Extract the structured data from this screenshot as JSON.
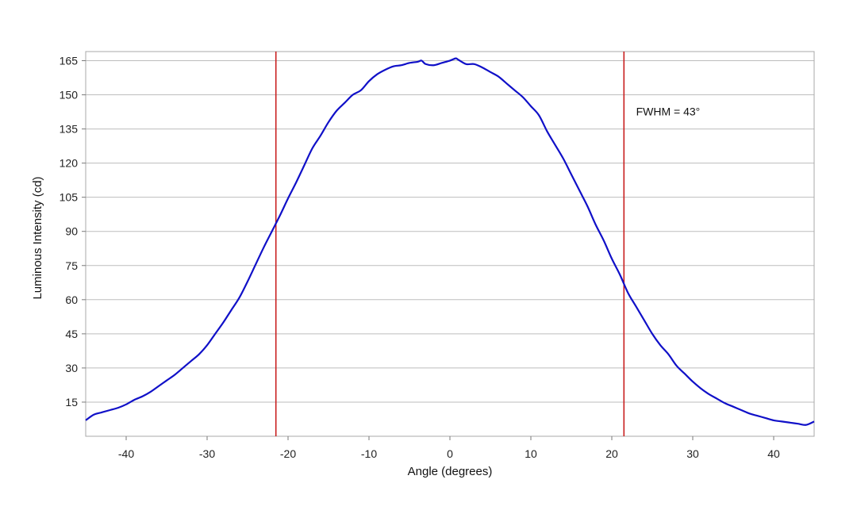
{
  "chart_data": {
    "type": "line",
    "title": "",
    "xlabel": "Angle (degrees)",
    "ylabel": "Luminous Intensity (cd)",
    "xlim": [
      -45,
      45
    ],
    "ylim": [
      0,
      169
    ],
    "x_ticks": [
      -40,
      -30,
      -20,
      -10,
      0,
      10,
      20,
      30,
      40
    ],
    "y_ticks": [
      15,
      30,
      45,
      60,
      75,
      90,
      105,
      120,
      135,
      150,
      165
    ],
    "grid": "horizontal",
    "legend": "none",
    "series": [
      {
        "color": "#1010c8",
        "x": [
          -45,
          -44,
          -43,
          -42,
          -41,
          -40,
          -39,
          -38,
          -37,
          -36,
          -35,
          -34,
          -33,
          -32,
          -31,
          -30,
          -29,
          -28,
          -27,
          -26,
          -25,
          -24,
          -23,
          -22,
          -21,
          -20,
          -19,
          -18,
          -17,
          -16,
          -15,
          -14,
          -13,
          -12,
          -11,
          -10,
          -9,
          -8,
          -7,
          -6,
          -5,
          -4,
          -3.5,
          -3,
          -2,
          -1,
          0,
          0.7,
          1,
          2,
          3,
          4,
          5,
          6,
          7,
          8,
          9,
          10,
          11,
          12,
          13,
          14,
          15,
          16,
          17,
          18,
          19,
          20,
          21,
          22,
          23,
          24,
          25,
          26,
          27,
          28,
          29,
          30,
          31,
          32,
          33,
          34,
          35,
          36,
          37,
          38,
          39,
          40,
          41,
          42,
          43,
          44,
          45
        ],
        "values": [
          7,
          9.5,
          10.5,
          11.5,
          12.5,
          14,
          16,
          17.5,
          19.5,
          22,
          24.5,
          27,
          30,
          33,
          36,
          40,
          45,
          50,
          55.5,
          61,
          68,
          75.5,
          83,
          90,
          97,
          104.5,
          111.5,
          119,
          126.5,
          132,
          138,
          143,
          146.5,
          150,
          152,
          156,
          159,
          161,
          162.5,
          163,
          164,
          164.5,
          165,
          163.5,
          163,
          164,
          165,
          166,
          165.5,
          163.5,
          163.5,
          162,
          160,
          158,
          155,
          152,
          149,
          145,
          141,
          134,
          128,
          122,
          115,
          108,
          101,
          93,
          86,
          78,
          71,
          63,
          57,
          51,
          45,
          40,
          36,
          31,
          27.5,
          24,
          21,
          18.5,
          16.5,
          14.5,
          13,
          11.5,
          10,
          9,
          8,
          7,
          6.5,
          6,
          5.5,
          5,
          6.5
        ]
      }
    ],
    "vlines": [
      {
        "x": -21.5,
        "color": "#c82020"
      },
      {
        "x": 21.5,
        "color": "#c82020"
      }
    ],
    "annotations": [
      {
        "text": "FWHM = 43°",
        "x": 23,
        "y": 141
      }
    ]
  }
}
